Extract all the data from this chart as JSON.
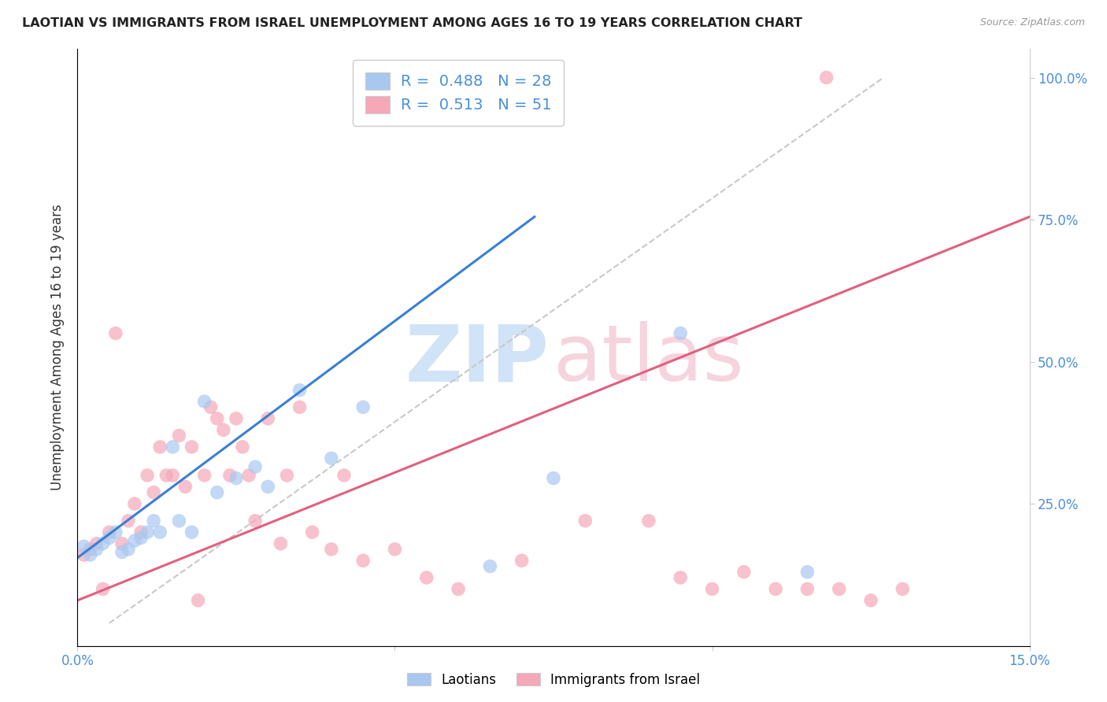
{
  "title": "LAOTIAN VS IMMIGRANTS FROM ISRAEL UNEMPLOYMENT AMONG AGES 16 TO 19 YEARS CORRELATION CHART",
  "source": "Source: ZipAtlas.com",
  "ylabel": "Unemployment Among Ages 16 to 19 years",
  "xlim": [
    0.0,
    0.15
  ],
  "ylim": [
    0.0,
    1.05
  ],
  "label1": "Laotians",
  "label2": "Immigrants from Israel",
  "color1": "#a8c8f0",
  "color2": "#f5a8b8",
  "trendline1_color": "#3a7fd4",
  "trendline2_color": "#e06080",
  "diagonal_color": "#c8c8c8",
  "background_color": "#ffffff",
  "scatter1_x": [
    0.001,
    0.002,
    0.003,
    0.004,
    0.005,
    0.006,
    0.007,
    0.008,
    0.009,
    0.01,
    0.011,
    0.012,
    0.013,
    0.015,
    0.016,
    0.018,
    0.02,
    0.022,
    0.025,
    0.028,
    0.03,
    0.035,
    0.04,
    0.045,
    0.065,
    0.075,
    0.095,
    0.115
  ],
  "scatter1_y": [
    0.175,
    0.16,
    0.17,
    0.18,
    0.19,
    0.2,
    0.165,
    0.17,
    0.185,
    0.19,
    0.2,
    0.22,
    0.2,
    0.35,
    0.22,
    0.2,
    0.43,
    0.27,
    0.295,
    0.315,
    0.28,
    0.45,
    0.33,
    0.42,
    0.14,
    0.295,
    0.55,
    0.13
  ],
  "scatter2_x": [
    0.001,
    0.002,
    0.003,
    0.004,
    0.005,
    0.006,
    0.007,
    0.008,
    0.009,
    0.01,
    0.011,
    0.012,
    0.013,
    0.014,
    0.015,
    0.016,
    0.017,
    0.018,
    0.019,
    0.02,
    0.021,
    0.022,
    0.023,
    0.024,
    0.025,
    0.026,
    0.027,
    0.028,
    0.03,
    0.032,
    0.033,
    0.035,
    0.037,
    0.04,
    0.042,
    0.045,
    0.05,
    0.055,
    0.06,
    0.07,
    0.08,
    0.09,
    0.095,
    0.1,
    0.105,
    0.11,
    0.115,
    0.118,
    0.12,
    0.125,
    0.13
  ],
  "scatter2_y": [
    0.16,
    0.17,
    0.18,
    0.1,
    0.2,
    0.55,
    0.18,
    0.22,
    0.25,
    0.2,
    0.3,
    0.27,
    0.35,
    0.3,
    0.3,
    0.37,
    0.28,
    0.35,
    0.08,
    0.3,
    0.42,
    0.4,
    0.38,
    0.3,
    0.4,
    0.35,
    0.3,
    0.22,
    0.4,
    0.18,
    0.3,
    0.42,
    0.2,
    0.17,
    0.3,
    0.15,
    0.17,
    0.12,
    0.1,
    0.15,
    0.22,
    0.22,
    0.12,
    0.1,
    0.13,
    0.1,
    0.1,
    1.0,
    0.1,
    0.08,
    0.1
  ],
  "trendline1_x": [
    0.0,
    0.072
  ],
  "trendline1_y": [
    0.155,
    0.755
  ],
  "trendline2_x": [
    0.0,
    0.15
  ],
  "trendline2_y": [
    0.08,
    0.755
  ]
}
